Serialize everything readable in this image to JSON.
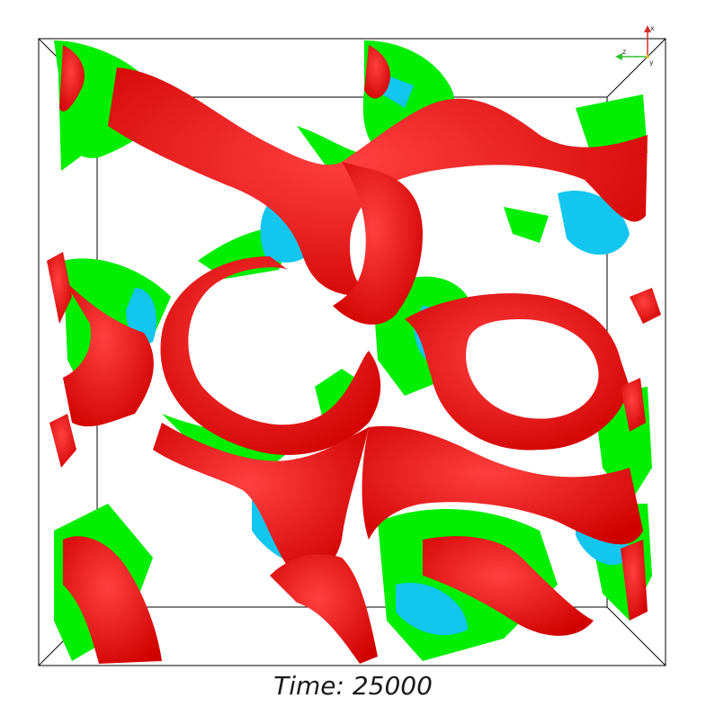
{
  "caption": {
    "time_text": "Time: 25000"
  },
  "axes": {
    "x_label": "x",
    "z_label": "z",
    "y_label": "y",
    "colors": {
      "x": "#d0302a",
      "z": "#2fbf2f",
      "y": "#e0c02a"
    }
  },
  "surface_colors": {
    "red": "#ff0d0d",
    "green": "#00ee00",
    "cyan": "#12c6ee",
    "outline": "#000000"
  }
}
